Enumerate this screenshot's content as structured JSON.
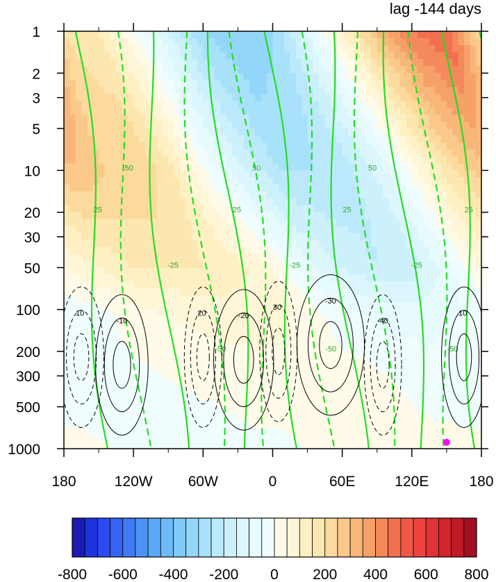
{
  "chart_data": {
    "type": "heatmap",
    "title_right": "lag -144 days",
    "x_axis": {
      "range": [
        -180,
        180
      ],
      "tick_values": [
        -180,
        -120,
        -60,
        0,
        60,
        120,
        180
      ],
      "tick_labels": [
        "180",
        "120W",
        "60W",
        "0",
        "60E",
        "120E",
        "180"
      ],
      "minor_tick_step": 30
    },
    "y_axis": {
      "scale": "log",
      "reversed": true,
      "range": [
        1,
        1000
      ],
      "tick_values": [
        1,
        2,
        3,
        5,
        10,
        20,
        30,
        50,
        100,
        200,
        300,
        500,
        1000
      ],
      "tick_labels": [
        "1",
        "2",
        "3",
        "5",
        "10",
        "20",
        "30",
        "50",
        "100",
        "200",
        "300",
        "500",
        "1000"
      ]
    },
    "colorbar": {
      "levels": [
        -800,
        -750,
        -700,
        -650,
        -600,
        -550,
        -500,
        -450,
        -400,
        -350,
        -300,
        -250,
        -200,
        -150,
        -100,
        -50,
        0,
        50,
        100,
        150,
        200,
        250,
        300,
        350,
        400,
        450,
        500,
        550,
        600,
        650,
        700,
        750,
        800
      ],
      "tick_labels": [
        "-800",
        "-600",
        "-400",
        "-200",
        "0",
        "200",
        "400",
        "600",
        "800"
      ],
      "colors": [
        "#1a1ab4",
        "#1e34dc",
        "#2a4bef",
        "#3563f3",
        "#3f7bf5",
        "#4d93f6",
        "#5ca8f6",
        "#6cbaf7",
        "#80c9f8",
        "#94d6f9",
        "#a7e1fa",
        "#bbe9fb",
        "#cdf1fc",
        "#dcf6fd",
        "#e7fafd",
        "#f0fdfe",
        "#fffbe8",
        "#fff6d8",
        "#fff0c4",
        "#fde7b0",
        "#fcd99c",
        "#fac98a",
        "#f8b679",
        "#f6a16a",
        "#f48a5c",
        "#f27050",
        "#f05846",
        "#ee443e",
        "#e33236",
        "#d4252f",
        "#c01a28",
        "#a50f22"
      ]
    },
    "shading_levels": [
      {
        "lon": -180,
        "value_by_pressure": {
          "1": 200,
          "10": 250,
          "50": 150,
          "100": 50,
          "300": 0,
          "1000": -20
        }
      },
      {
        "lon": -150,
        "value_by_pressure": {
          "1": 150,
          "10": 250,
          "50": 150,
          "100": 60,
          "300": 10,
          "1000": -20
        }
      },
      {
        "lon": -120,
        "value_by_pressure": {
          "1": 0,
          "10": 150,
          "50": 150,
          "100": 80,
          "300": 20,
          "1000": -10
        }
      },
      {
        "lon": -90,
        "value_by_pressure": {
          "1": -150,
          "10": -20,
          "50": 120,
          "100": 80,
          "300": 30,
          "1000": -10
        }
      },
      {
        "lon": -60,
        "value_by_pressure": {
          "1": -300,
          "10": -150,
          "50": 50,
          "100": 60,
          "300": 30,
          "1000": 10
        }
      },
      {
        "lon": -30,
        "value_by_pressure": {
          "1": -350,
          "10": -250,
          "50": -80,
          "100": 0,
          "300": 20,
          "1000": 10
        }
      },
      {
        "lon": 0,
        "value_by_pressure": {
          "1": -300,
          "10": -250,
          "50": -150,
          "100": -50,
          "300": 10,
          "1000": 10
        }
      },
      {
        "lon": 30,
        "value_by_pressure": {
          "1": -100,
          "10": -220,
          "50": -200,
          "100": -80,
          "300": -10,
          "1000": 10
        }
      },
      {
        "lon": 60,
        "value_by_pressure": {
          "1": 100,
          "10": -120,
          "50": -180,
          "100": -80,
          "300": -20,
          "1000": 10
        }
      },
      {
        "lon": 90,
        "value_by_pressure": {
          "1": 300,
          "10": 50,
          "50": -80,
          "100": -50,
          "300": -20,
          "1000": 10
        }
      },
      {
        "lon": 120,
        "value_by_pressure": {
          "1": 450,
          "10": 200,
          "50": 50,
          "100": -20,
          "300": -20,
          "1000": 0
        }
      },
      {
        "lon": 150,
        "value_by_pressure": {
          "1": 500,
          "10": 300,
          "50": 100,
          "100": 0,
          "300": -10,
          "1000": 0
        }
      },
      {
        "lon": 180,
        "value_by_pressure": {
          "1": 200,
          "10": 250,
          "50": 150,
          "100": 50,
          "300": 0,
          "1000": -20
        }
      }
    ],
    "contour_labels_green": [
      "25",
      "50",
      "-25",
      "-50"
    ],
    "contour_labels_black": [
      "10",
      "-10",
      "20",
      "-20",
      "30",
      "-30",
      "-40"
    ],
    "marker": {
      "lon": 150,
      "pressure": 900,
      "color": "#ff00ff"
    }
  }
}
